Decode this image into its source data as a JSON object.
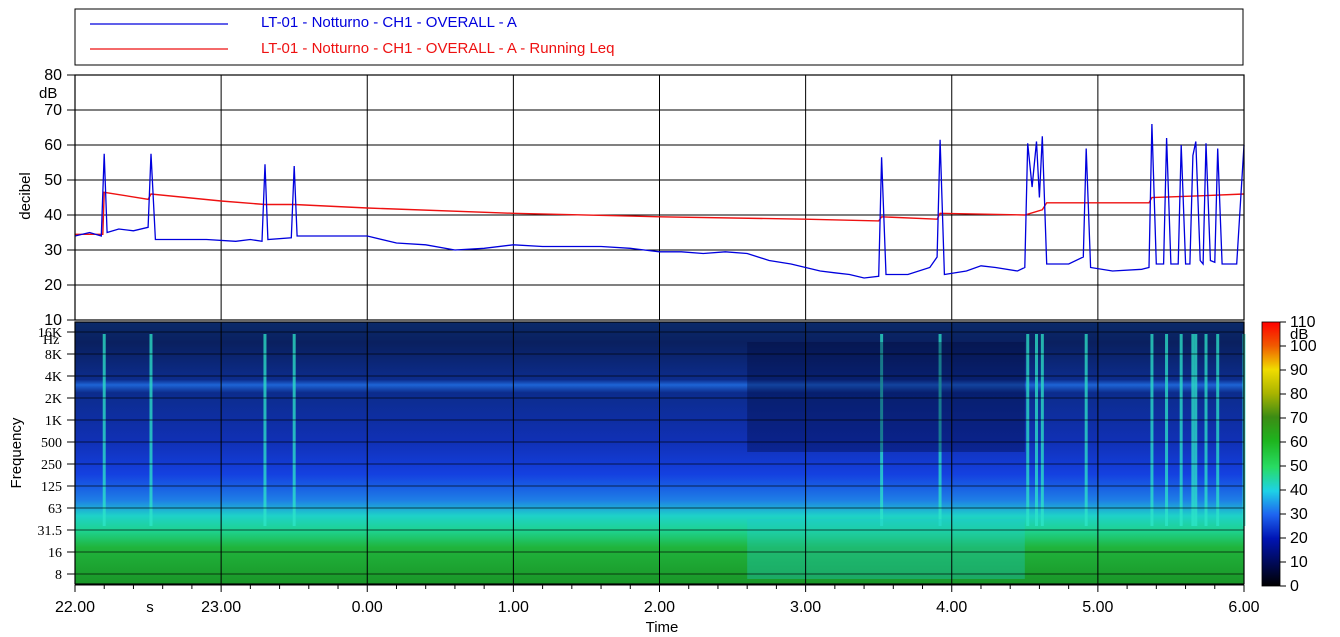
{
  "legend": {
    "items": [
      {
        "label": "LT-01 - Notturno - CH1 - OVERALL - A",
        "color": "#0000dd"
      },
      {
        "label": "LT-01 - Notturno - CH1 - OVERALL - A - Running Leq",
        "color": "#ee1111"
      }
    ]
  },
  "chart_data": [
    {
      "type": "line",
      "ylabel": "decibel",
      "yunit": "dB",
      "ylim": [
        10,
        80
      ],
      "yticks": [
        10,
        20,
        30,
        40,
        50,
        60,
        70,
        80
      ],
      "xlim": [
        22.0,
        30.0
      ],
      "grid": true,
      "series": [
        {
          "name": "LT-01 - Notturno - CH1 - OVERALL - A",
          "color": "#0000dd",
          "points": [
            [
              22.0,
              34
            ],
            [
              22.1,
              35
            ],
            [
              22.18,
              34
            ],
            [
              22.2,
              57.5
            ],
            [
              22.22,
              35
            ],
            [
              22.3,
              36
            ],
            [
              22.4,
              35.5
            ],
            [
              22.5,
              36.5
            ],
            [
              22.52,
              57.5
            ],
            [
              22.55,
              33
            ],
            [
              22.7,
              33
            ],
            [
              22.9,
              33
            ],
            [
              23.1,
              32.5
            ],
            [
              23.2,
              33
            ],
            [
              23.28,
              32.5
            ],
            [
              23.3,
              54.5
            ],
            [
              23.32,
              33
            ],
            [
              23.48,
              33.5
            ],
            [
              23.5,
              54
            ],
            [
              23.52,
              34
            ],
            [
              23.8,
              34
            ],
            [
              24.0,
              34
            ],
            [
              24.2,
              32
            ],
            [
              24.4,
              31.5
            ],
            [
              24.6,
              30
            ],
            [
              24.8,
              30.5
            ],
            [
              25.0,
              31.5
            ],
            [
              25.2,
              31
            ],
            [
              25.4,
              31
            ],
            [
              25.6,
              31
            ],
            [
              25.8,
              30.5
            ],
            [
              26.0,
              29.5
            ],
            [
              26.15,
              29.5
            ],
            [
              26.3,
              29
            ],
            [
              26.45,
              29.5
            ],
            [
              26.6,
              29
            ],
            [
              26.75,
              27
            ],
            [
              26.9,
              26
            ],
            [
              27.0,
              25
            ],
            [
              27.1,
              24
            ],
            [
              27.2,
              23.5
            ],
            [
              27.3,
              23
            ],
            [
              27.4,
              22
            ],
            [
              27.5,
              22.5
            ],
            [
              27.52,
              56.5
            ],
            [
              27.55,
              23
            ],
            [
              27.7,
              23
            ],
            [
              27.85,
              25
            ],
            [
              27.9,
              28
            ],
            [
              27.92,
              61.5
            ],
            [
              27.95,
              23
            ],
            [
              28.1,
              24
            ],
            [
              28.2,
              25.5
            ],
            [
              28.3,
              25
            ],
            [
              28.45,
              24
            ],
            [
              28.5,
              25
            ],
            [
              28.52,
              60.5
            ],
            [
              28.55,
              48
            ],
            [
              28.58,
              61
            ],
            [
              28.6,
              45
            ],
            [
              28.62,
              62.5
            ],
            [
              28.65,
              26
            ],
            [
              28.8,
              26
            ],
            [
              28.9,
              28
            ],
            [
              28.92,
              59
            ],
            [
              28.95,
              25
            ],
            [
              29.1,
              24
            ],
            [
              29.3,
              24.5
            ],
            [
              29.35,
              25
            ],
            [
              29.37,
              66
            ],
            [
              29.4,
              26
            ],
            [
              29.45,
              26
            ],
            [
              29.47,
              62
            ],
            [
              29.5,
              26
            ],
            [
              29.55,
              26
            ],
            [
              29.57,
              60
            ],
            [
              29.6,
              26
            ],
            [
              29.63,
              26
            ],
            [
              29.65,
              57
            ],
            [
              29.67,
              61
            ],
            [
              29.7,
              27
            ],
            [
              29.72,
              26
            ],
            [
              29.74,
              60.5
            ],
            [
              29.77,
              27
            ],
            [
              29.8,
              26.5
            ],
            [
              29.82,
              59
            ],
            [
              29.85,
              26
            ],
            [
              29.95,
              26
            ],
            [
              30.0,
              60
            ]
          ]
        },
        {
          "name": "LT-01 - Notturno - CH1 - OVERALL - A - Running Leq",
          "color": "#ee1111",
          "points": [
            [
              22.0,
              34.5
            ],
            [
              22.19,
              34.5
            ],
            [
              22.2,
              46.5
            ],
            [
              22.5,
              44.5
            ],
            [
              22.52,
              46
            ],
            [
              23.0,
              44
            ],
            [
              23.3,
              43
            ],
            [
              23.5,
              43
            ],
            [
              24.0,
              42
            ],
            [
              25.0,
              40.5
            ],
            [
              26.0,
              39.5
            ],
            [
              27.0,
              38.8
            ],
            [
              27.5,
              38.3
            ],
            [
              27.52,
              39.5
            ],
            [
              27.9,
              38.8
            ],
            [
              27.92,
              40.5
            ],
            [
              28.5,
              40
            ],
            [
              28.62,
              41.5
            ],
            [
              28.65,
              43.5
            ],
            [
              29.0,
              43.5
            ],
            [
              29.35,
              43.5
            ],
            [
              29.37,
              45
            ],
            [
              29.7,
              45.5
            ],
            [
              30.0,
              46
            ]
          ]
        }
      ]
    },
    {
      "type": "heatmap",
      "ylabel": "Frequency",
      "yunit": "Hz",
      "ytick_labels": [
        "16K",
        "8K",
        "4K",
        "2K",
        "1K",
        "500",
        "250",
        "125",
        "63",
        "31.5",
        "16",
        "8"
      ],
      "xlabel": "Time",
      "xunit": "s",
      "xlim": [
        22.0,
        30.0
      ],
      "xticks": [
        22.0,
        23.0,
        24.0,
        25.0,
        26.0,
        27.0,
        28.0,
        29.0,
        30.0
      ],
      "xtick_labels": [
        "22.00",
        "23.00",
        "0.00",
        "1.00",
        "2.00",
        "3.00",
        "4.00",
        "5.00",
        "6.00"
      ],
      "colorbar": {
        "unit": "dB",
        "ticks": [
          0,
          10,
          20,
          30,
          40,
          50,
          60,
          70,
          80,
          90,
          100,
          110
        ],
        "colors": [
          "#000000",
          "#000a5a",
          "#0014b4",
          "#1e64f0",
          "#1ed2e6",
          "#28dc64",
          "#1eb41e",
          "#3c8c14",
          "#aab400",
          "#f0dc00",
          "#f05a00",
          "#ff0000"
        ]
      }
    }
  ]
}
